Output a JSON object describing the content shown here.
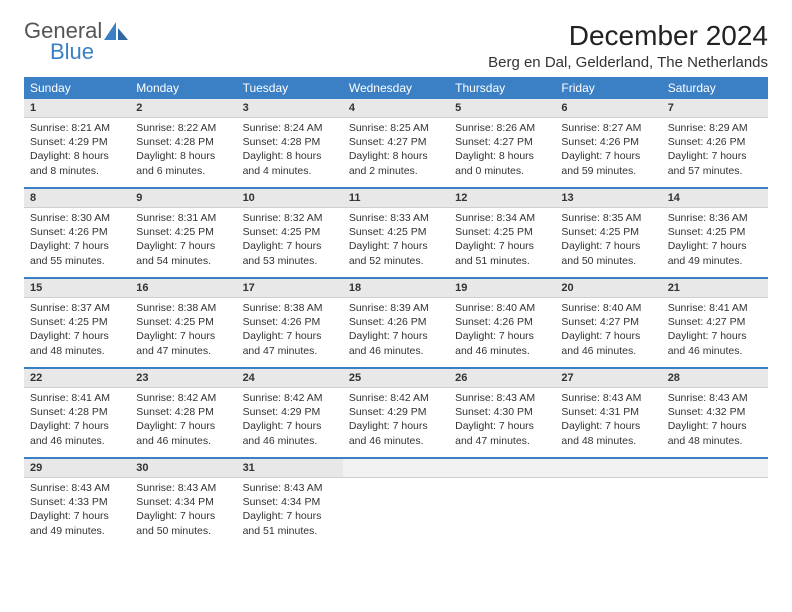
{
  "brand": {
    "word1": "General",
    "word2": "Blue",
    "logo_color": "#3b7fc4",
    "text_color_1": "#555555",
    "text_color_2": "#3b7fc4"
  },
  "header": {
    "title": "December 2024",
    "location": "Berg en Dal, Gelderland, The Netherlands",
    "title_fontsize": 28,
    "location_fontsize": 15
  },
  "style": {
    "header_bg": "#3b7fc4",
    "header_fg": "#ffffff",
    "daynum_bg": "#e8e8e8",
    "daynum_fg": "#333333",
    "body_fg": "#333333",
    "page_bg": "#ffffff",
    "font_family": "Arial",
    "cell_fontsize": 10.5,
    "daynum_fontsize": 11,
    "weekday_fontsize": 12
  },
  "weekdays": [
    "Sunday",
    "Monday",
    "Tuesday",
    "Wednesday",
    "Thursday",
    "Friday",
    "Saturday"
  ],
  "weeks": [
    [
      {
        "n": "1",
        "sunrise": "Sunrise: 8:21 AM",
        "sunset": "Sunset: 4:29 PM",
        "daylight": "Daylight: 8 hours and 8 minutes."
      },
      {
        "n": "2",
        "sunrise": "Sunrise: 8:22 AM",
        "sunset": "Sunset: 4:28 PM",
        "daylight": "Daylight: 8 hours and 6 minutes."
      },
      {
        "n": "3",
        "sunrise": "Sunrise: 8:24 AM",
        "sunset": "Sunset: 4:28 PM",
        "daylight": "Daylight: 8 hours and 4 minutes."
      },
      {
        "n": "4",
        "sunrise": "Sunrise: 8:25 AM",
        "sunset": "Sunset: 4:27 PM",
        "daylight": "Daylight: 8 hours and 2 minutes."
      },
      {
        "n": "5",
        "sunrise": "Sunrise: 8:26 AM",
        "sunset": "Sunset: 4:27 PM",
        "daylight": "Daylight: 8 hours and 0 minutes."
      },
      {
        "n": "6",
        "sunrise": "Sunrise: 8:27 AM",
        "sunset": "Sunset: 4:26 PM",
        "daylight": "Daylight: 7 hours and 59 minutes."
      },
      {
        "n": "7",
        "sunrise": "Sunrise: 8:29 AM",
        "sunset": "Sunset: 4:26 PM",
        "daylight": "Daylight: 7 hours and 57 minutes."
      }
    ],
    [
      {
        "n": "8",
        "sunrise": "Sunrise: 8:30 AM",
        "sunset": "Sunset: 4:26 PM",
        "daylight": "Daylight: 7 hours and 55 minutes."
      },
      {
        "n": "9",
        "sunrise": "Sunrise: 8:31 AM",
        "sunset": "Sunset: 4:25 PM",
        "daylight": "Daylight: 7 hours and 54 minutes."
      },
      {
        "n": "10",
        "sunrise": "Sunrise: 8:32 AM",
        "sunset": "Sunset: 4:25 PM",
        "daylight": "Daylight: 7 hours and 53 minutes."
      },
      {
        "n": "11",
        "sunrise": "Sunrise: 8:33 AM",
        "sunset": "Sunset: 4:25 PM",
        "daylight": "Daylight: 7 hours and 52 minutes."
      },
      {
        "n": "12",
        "sunrise": "Sunrise: 8:34 AM",
        "sunset": "Sunset: 4:25 PM",
        "daylight": "Daylight: 7 hours and 51 minutes."
      },
      {
        "n": "13",
        "sunrise": "Sunrise: 8:35 AM",
        "sunset": "Sunset: 4:25 PM",
        "daylight": "Daylight: 7 hours and 50 minutes."
      },
      {
        "n": "14",
        "sunrise": "Sunrise: 8:36 AM",
        "sunset": "Sunset: 4:25 PM",
        "daylight": "Daylight: 7 hours and 49 minutes."
      }
    ],
    [
      {
        "n": "15",
        "sunrise": "Sunrise: 8:37 AM",
        "sunset": "Sunset: 4:25 PM",
        "daylight": "Daylight: 7 hours and 48 minutes."
      },
      {
        "n": "16",
        "sunrise": "Sunrise: 8:38 AM",
        "sunset": "Sunset: 4:25 PM",
        "daylight": "Daylight: 7 hours and 47 minutes."
      },
      {
        "n": "17",
        "sunrise": "Sunrise: 8:38 AM",
        "sunset": "Sunset: 4:26 PM",
        "daylight": "Daylight: 7 hours and 47 minutes."
      },
      {
        "n": "18",
        "sunrise": "Sunrise: 8:39 AM",
        "sunset": "Sunset: 4:26 PM",
        "daylight": "Daylight: 7 hours and 46 minutes."
      },
      {
        "n": "19",
        "sunrise": "Sunrise: 8:40 AM",
        "sunset": "Sunset: 4:26 PM",
        "daylight": "Daylight: 7 hours and 46 minutes."
      },
      {
        "n": "20",
        "sunrise": "Sunrise: 8:40 AM",
        "sunset": "Sunset: 4:27 PM",
        "daylight": "Daylight: 7 hours and 46 minutes."
      },
      {
        "n": "21",
        "sunrise": "Sunrise: 8:41 AM",
        "sunset": "Sunset: 4:27 PM",
        "daylight": "Daylight: 7 hours and 46 minutes."
      }
    ],
    [
      {
        "n": "22",
        "sunrise": "Sunrise: 8:41 AM",
        "sunset": "Sunset: 4:28 PM",
        "daylight": "Daylight: 7 hours and 46 minutes."
      },
      {
        "n": "23",
        "sunrise": "Sunrise: 8:42 AM",
        "sunset": "Sunset: 4:28 PM",
        "daylight": "Daylight: 7 hours and 46 minutes."
      },
      {
        "n": "24",
        "sunrise": "Sunrise: 8:42 AM",
        "sunset": "Sunset: 4:29 PM",
        "daylight": "Daylight: 7 hours and 46 minutes."
      },
      {
        "n": "25",
        "sunrise": "Sunrise: 8:42 AM",
        "sunset": "Sunset: 4:29 PM",
        "daylight": "Daylight: 7 hours and 46 minutes."
      },
      {
        "n": "26",
        "sunrise": "Sunrise: 8:43 AM",
        "sunset": "Sunset: 4:30 PM",
        "daylight": "Daylight: 7 hours and 47 minutes."
      },
      {
        "n": "27",
        "sunrise": "Sunrise: 8:43 AM",
        "sunset": "Sunset: 4:31 PM",
        "daylight": "Daylight: 7 hours and 48 minutes."
      },
      {
        "n": "28",
        "sunrise": "Sunrise: 8:43 AM",
        "sunset": "Sunset: 4:32 PM",
        "daylight": "Daylight: 7 hours and 48 minutes."
      }
    ],
    [
      {
        "n": "29",
        "sunrise": "Sunrise: 8:43 AM",
        "sunset": "Sunset: 4:33 PM",
        "daylight": "Daylight: 7 hours and 49 minutes."
      },
      {
        "n": "30",
        "sunrise": "Sunrise: 8:43 AM",
        "sunset": "Sunset: 4:34 PM",
        "daylight": "Daylight: 7 hours and 50 minutes."
      },
      {
        "n": "31",
        "sunrise": "Sunrise: 8:43 AM",
        "sunset": "Sunset: 4:34 PM",
        "daylight": "Daylight: 7 hours and 51 minutes."
      },
      {
        "n": "",
        "sunrise": "",
        "sunset": "",
        "daylight": ""
      },
      {
        "n": "",
        "sunrise": "",
        "sunset": "",
        "daylight": ""
      },
      {
        "n": "",
        "sunrise": "",
        "sunset": "",
        "daylight": ""
      },
      {
        "n": "",
        "sunrise": "",
        "sunset": "",
        "daylight": ""
      }
    ]
  ]
}
